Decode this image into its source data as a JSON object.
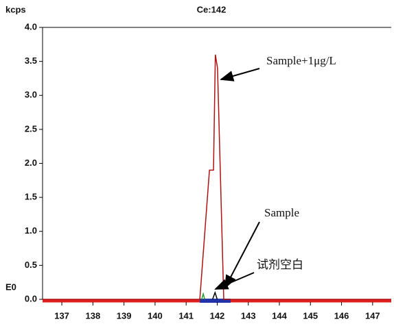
{
  "chart_data": {
    "type": "line",
    "title": "Ce:142",
    "y_unit_label": "kcps",
    "baseline_label": "E0",
    "xlim": [
      136.38,
      147.6
    ],
    "ylim": [
      0,
      4.0
    ],
    "xticks": [
      137,
      138,
      139,
      140,
      141,
      142,
      143,
      144,
      145,
      146,
      147
    ],
    "yticks": [
      {
        "value": 0,
        "label": "0.0"
      },
      {
        "value": 0.5,
        "label": "0.5"
      },
      {
        "value": 1,
        "label": "1.0"
      },
      {
        "value": 1.5,
        "label": "1.5"
      },
      {
        "value": 2,
        "label": "2.0"
      },
      {
        "value": 2.5,
        "label": "2.5"
      },
      {
        "value": 3,
        "label": "3.0"
      },
      {
        "value": 3.5,
        "label": "3.5"
      },
      {
        "value": 4,
        "label": "4.0"
      }
    ],
    "band": {
      "from": 141.44,
      "to": 142.43,
      "color": "#2233aa"
    },
    "series": [
      {
        "color": "#b01010",
        "x": [
          136.38,
          141.44,
          141.75,
          141.88,
          141.94,
          142.01,
          142.21,
          147.6
        ],
        "values": [
          0,
          0,
          1.9,
          1.9,
          3.6,
          3.4,
          0,
          0
        ]
      },
      {
        "color": "#2a9a2a",
        "x": [
          141.5,
          141.55,
          141.6
        ],
        "values": [
          0,
          0.08,
          0
        ]
      },
      {
        "color": "#000000",
        "x": [
          141.85,
          141.93,
          142.0
        ],
        "values": [
          0,
          0.1,
          0
        ]
      }
    ],
    "annotations": [
      "Sample+1μg/L",
      "Sample",
      "试剂空白"
    ]
  }
}
